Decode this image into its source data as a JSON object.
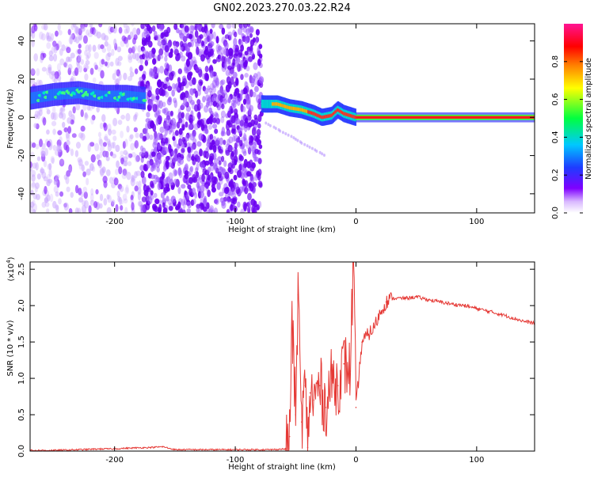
{
  "title": "GN02.2023.270.03.22.R24",
  "colors": {
    "snr_line": "#e53935",
    "axis": "#000000",
    "colorbar": [
      "#ffffff",
      "#b36bff",
      "#7f00ff",
      "#1e3cff",
      "#00c8ff",
      "#00ff00",
      "#ffff00",
      "#ff8000",
      "#ff0000",
      "#ff1493"
    ]
  },
  "chart_data": [
    {
      "type": "heatmap",
      "xlabel": "Height of straight line (km)",
      "ylabel": "Frequency (Hz)",
      "xlim": [
        -270,
        148
      ],
      "ylim": [
        -50,
        49
      ],
      "xticks": [
        -200,
        -100,
        0,
        100
      ],
      "xtick_labels": [
        "-200",
        "-100",
        "0",
        "100"
      ],
      "yticks": [
        -40,
        -20,
        0,
        20,
        40
      ],
      "ytick_labels": [
        "-40",
        "-20",
        "0",
        "20",
        "40"
      ],
      "colorbar": {
        "label": "Normalized spectral amplitude",
        "range": [
          0,
          1
        ],
        "ticks": [
          0.0,
          0.2,
          0.4,
          0.6,
          0.8
        ],
        "tick_labels": [
          "0.0",
          "0.2",
          "0.4",
          "0.6",
          "0.8"
        ]
      },
      "noise_regions": [
        {
          "x_from": -270,
          "x_to": -178,
          "density": "light"
        },
        {
          "x_from": -178,
          "x_to": -78,
          "density": "heavy"
        }
      ],
      "signal_track": {
        "x": [
          -270,
          -250,
          -230,
          -210,
          -190,
          -175,
          -75,
          -65,
          -55,
          -45,
          -35,
          -28,
          -20,
          -15,
          -10,
          -5,
          0,
          50,
          100,
          148
        ],
        "frequency": [
          10,
          12,
          13,
          11,
          11,
          10,
          7,
          7,
          5,
          4,
          2,
          0,
          1,
          4,
          2,
          1,
          0,
          0,
          0,
          0
        ],
        "amplitude": [
          0.4,
          0.45,
          0.45,
          0.45,
          0.45,
          0.4,
          0.5,
          0.6,
          0.7,
          0.75,
          0.8,
          0.85,
          0.8,
          0.8,
          0.85,
          0.9,
          0.95,
          0.95,
          0.95,
          0.95
        ]
      }
    },
    {
      "type": "line",
      "xlabel": "Height of straight line (km)",
      "ylabel": "SNR (10 * v/v)",
      "scale_label_base": "(x10",
      "scale_label_exp": "4",
      "scale_label_end": ")",
      "xlim": [
        -270,
        148
      ],
      "ylim": [
        0,
        2.6
      ],
      "xticks": [
        -200,
        -100,
        0,
        100
      ],
      "xtick_labels": [
        "-200",
        "-100",
        "0",
        "100"
      ],
      "yticks": [
        0.0,
        0.5,
        1.0,
        1.5,
        2.0,
        2.5
      ],
      "ytick_labels": [
        "0.0",
        "0.5",
        "1.0",
        "1.5",
        "2.0",
        "2.5"
      ],
      "series": [
        {
          "x": [
            -270,
            -250,
            -230,
            -210,
            -200,
            -190,
            -170,
            -160,
            -150,
            -130,
            -110,
            -90,
            -70,
            -58,
            -55,
            -53,
            -50,
            -48,
            -45,
            -42,
            -40,
            -38,
            -35,
            -30,
            -25,
            -20,
            -15,
            -10,
            -5,
            -2,
            0,
            5,
            10,
            15,
            20,
            25,
            30,
            40,
            50,
            60,
            70,
            80,
            90,
            100,
            110,
            120,
            130,
            140,
            148
          ],
          "y": [
            0.01,
            0.01,
            0.02,
            0.03,
            0.03,
            0.04,
            0.05,
            0.06,
            0.02,
            0.02,
            0.02,
            0.02,
            0.02,
            0.03,
            0.2,
            1.8,
            0.5,
            2.15,
            0.4,
            0.9,
            0.05,
            0.8,
            0.7,
            0.9,
            0.6,
            1.0,
            0.9,
            1.2,
            1.1,
            2.6,
            0.6,
            1.5,
            1.6,
            1.7,
            1.9,
            2.05,
            2.1,
            2.1,
            2.12,
            2.08,
            2.05,
            2.02,
            2.0,
            1.96,
            1.92,
            1.88,
            1.83,
            1.78,
            1.76
          ]
        }
      ]
    }
  ]
}
